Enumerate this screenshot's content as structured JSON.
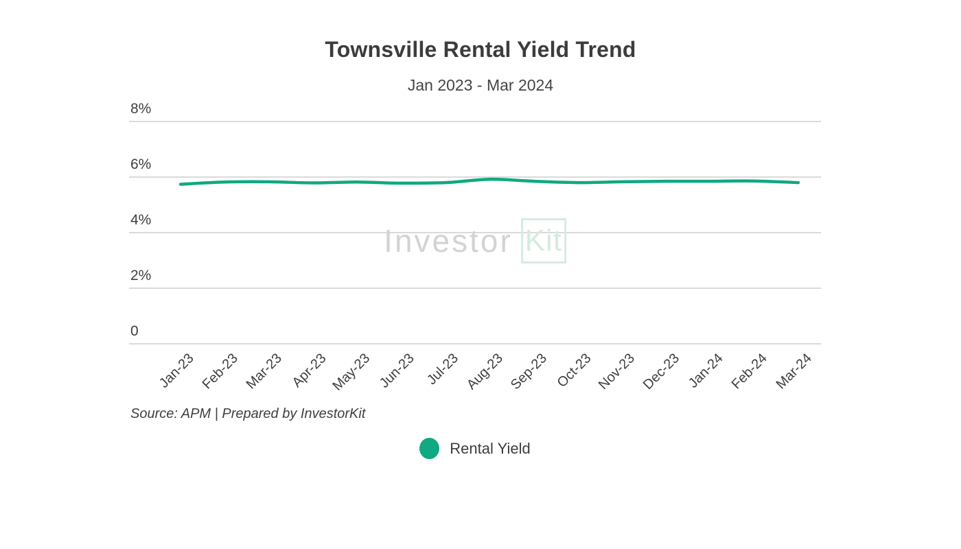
{
  "title": "Townsville Rental Yield Trend",
  "subtitle": "Jan 2023 - Mar 2024",
  "source_note": "Source: APM | Prepared by InvestorKit",
  "legend": {
    "label": "Rental Yield"
  },
  "watermark": {
    "gray_text": "Investor",
    "green_text": "Kit"
  },
  "colors": {
    "line": "#10A982",
    "grid": "#CDCDCD",
    "axis-text": "#3F3F3F",
    "title-text": "#3C3C3C",
    "watermark-gray": "#D3D3D3",
    "watermark-green": "#D6EBDF"
  },
  "chart_data": {
    "type": "line",
    "title": "Townsville Rental Yield Trend",
    "subtitle": "Jan 2023 - Mar 2024",
    "categories": [
      "Jan-23",
      "Feb-23",
      "Mar-23",
      "Apr-23",
      "May-23",
      "Jun-23",
      "Jul-23",
      "Aug-23",
      "Sep-23",
      "Oct-23",
      "Nov-23",
      "Dec-23",
      "Jan-24",
      "Feb-24",
      "Mar-24"
    ],
    "series": [
      {
        "name": "Rental Yield",
        "values": [
          5.74,
          5.82,
          5.83,
          5.79,
          5.82,
          5.78,
          5.8,
          5.92,
          5.85,
          5.8,
          5.83,
          5.85,
          5.85,
          5.86,
          5.8
        ]
      }
    ],
    "xlabel": "",
    "ylabel": "",
    "yticks": [
      {
        "label": "8%",
        "value": 8
      },
      {
        "label": "6%",
        "value": 6
      },
      {
        "label": "4%",
        "value": 4
      },
      {
        "label": "2%",
        "value": 2
      },
      {
        "label": "0",
        "value": 0
      }
    ],
    "ylim": [
      0,
      8
    ],
    "grid": true,
    "legend_position": "bottom"
  }
}
